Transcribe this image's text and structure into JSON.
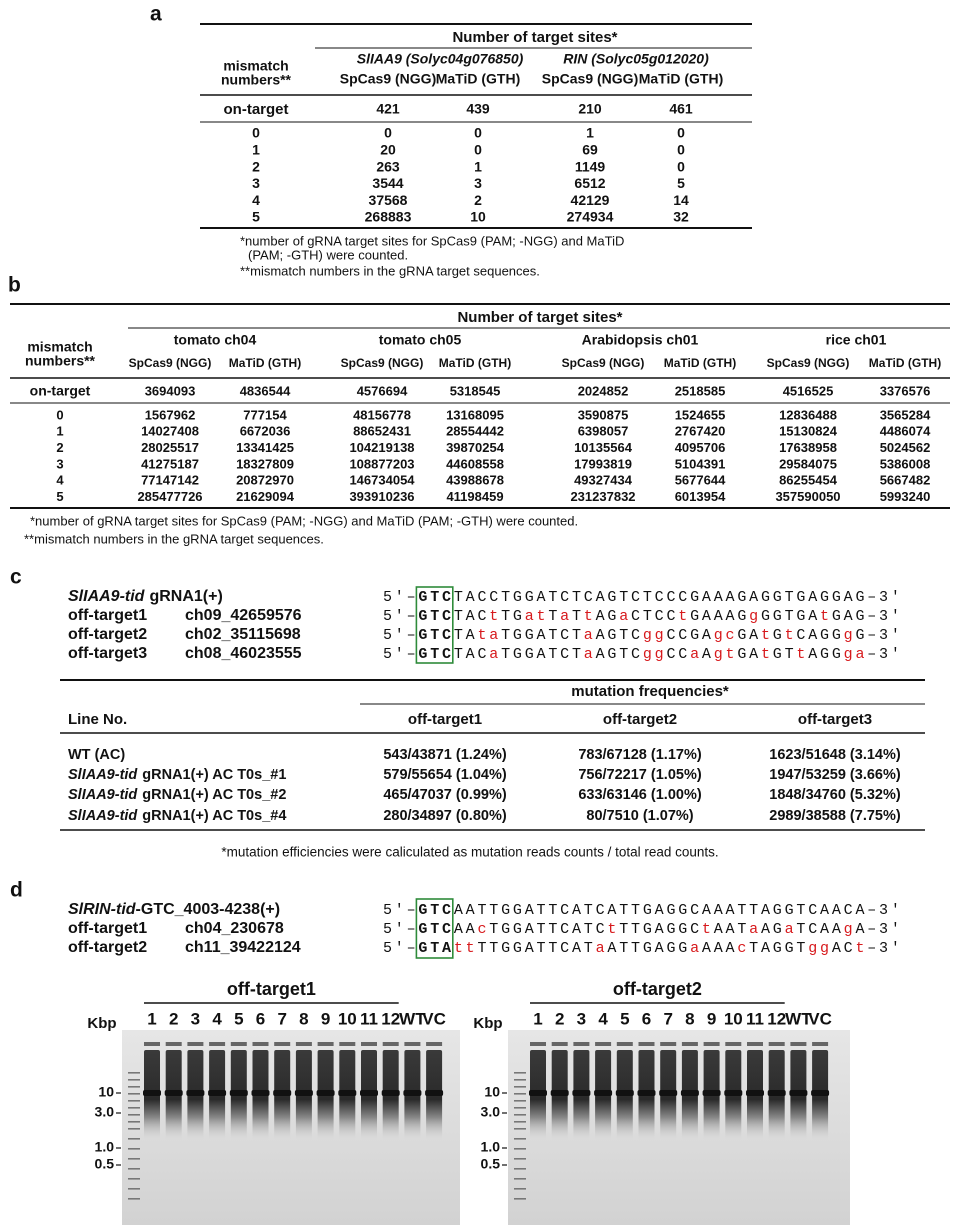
{
  "a": {
    "label": "a",
    "header": "Number of target sites*",
    "row_header": [
      "mismatch",
      "numbers**"
    ],
    "groups": [
      "SlIAA9 (Solyc04g076850)",
      "RIN (Solyc05g012020)"
    ],
    "columns": [
      "SpCas9 (NGG)",
      "MaTiD (GTH)",
      "SpCas9 (NGG)",
      "MaTiD (GTH)"
    ],
    "on_target": {
      "label": "on-target",
      "values": [
        421,
        439,
        210,
        461
      ]
    },
    "rows": [
      {
        "mismatch": 0,
        "values": [
          0,
          0,
          1,
          0
        ]
      },
      {
        "mismatch": 1,
        "values": [
          20,
          0,
          69,
          0
        ]
      },
      {
        "mismatch": 2,
        "values": [
          263,
          1,
          1149,
          0
        ]
      },
      {
        "mismatch": 3,
        "values": [
          3544,
          3,
          6512,
          5
        ]
      },
      {
        "mismatch": 4,
        "values": [
          37568,
          2,
          42129,
          14
        ]
      },
      {
        "mismatch": 5,
        "values": [
          268883,
          10,
          274934,
          32
        ]
      }
    ],
    "footnotes": [
      "*number of gRNA target sites for SpCas9 (PAM; -NGG) and MaTiD",
      "(PAM; -GTH) were counted.",
      "**mismatch numbers in the gRNA target sequences."
    ]
  },
  "b": {
    "label": "b",
    "header": "Number of target sites*",
    "row_header": [
      "mismatch",
      "numbers**"
    ],
    "groups": [
      "tomato ch04",
      "tomato ch05",
      "Arabidopsis ch01",
      "rice ch01"
    ],
    "columns": [
      "SpCas9 (NGG)",
      "MaTiD (GTH)",
      "SpCas9 (NGG)",
      "MaTiD (GTH)",
      "SpCas9 (NGG)",
      "MaTiD (GTH)",
      "SpCas9 (NGG)",
      "MaTiD (GTH)"
    ],
    "on_target": {
      "label": "on-target",
      "values": [
        3694093,
        4836544,
        4576694,
        5318545,
        2024852,
        2518585,
        4516525,
        3376576
      ]
    },
    "rows": [
      {
        "mismatch": 0,
        "values": [
          1567962,
          777154,
          48156778,
          13168095,
          3590875,
          1524655,
          12836488,
          3565284
        ]
      },
      {
        "mismatch": 1,
        "values": [
          14027408,
          6672036,
          88652431,
          28554442,
          6398057,
          2767420,
          15130824,
          4486074
        ]
      },
      {
        "mismatch": 2,
        "values": [
          28025517,
          13341425,
          104219138,
          39870254,
          10135564,
          4095706,
          17638958,
          5024562
        ]
      },
      {
        "mismatch": 3,
        "values": [
          41275187,
          18327809,
          108877203,
          44608558,
          17993819,
          5104391,
          29584075,
          5386008
        ]
      },
      {
        "mismatch": 4,
        "values": [
          77147142,
          20872970,
          146734054,
          43988678,
          49327434,
          5677644,
          86255454,
          5667482
        ]
      },
      {
        "mismatch": 5,
        "values": [
          285477726,
          21629094,
          393910236,
          41198459,
          231237832,
          6013954,
          357590050,
          5993240
        ]
      }
    ],
    "footnotes": [
      "*number of gRNA target sites for SpCas9 (PAM; -NGG) and MaTiD (PAM; -GTH) were counted.",
      "**mismatch numbers in the gRNA target sequences."
    ]
  },
  "c": {
    "label": "c",
    "end5": "5′–",
    "end3": "–3′",
    "guide": {
      "gene": "SlIAA9-tid",
      "name": "gRNA1(+)",
      "pam": "GTC",
      "seq": "TACCTGGATCTCAGTCTCCCGAAAGAGGTGAGGAG"
    },
    "off_targets": [
      {
        "name": "off-target1",
        "locus": "ch09_42659576",
        "pam": "GTC",
        "seq": "TACtTGatTaTtAGaCTCCtGAAAGgGGTGAtGAG"
      },
      {
        "name": "off-target2",
        "locus": "ch02_35115698",
        "pam": "GTC",
        "seq": "TAtaTGGATCTaAGTCggCCGAgcGAtGtCAGGgG"
      },
      {
        "name": "off-target3",
        "locus": "ch08_46023555",
        "pam": "GTC",
        "seq": "TACaTGGATCTaAGTCggCCaAgtGAtGTtAGGga"
      }
    ],
    "frequencies": {
      "header": "mutation frequencies*",
      "columns": [
        "Line No.",
        "off-target1",
        "off-target2",
        "off-target3"
      ],
      "rows": [
        {
          "line": {
            "text": "WT (AC)"
          },
          "values": [
            "543/43871 (1.24%)",
            "783/67128 (1.17%)",
            "1623/51648 (3.14%)"
          ]
        },
        {
          "line": {
            "gene": "SlIAA9-tid",
            "text": "gRNA1(+) AC T0s_#1"
          },
          "values": [
            "579/55654 (1.04%)",
            "756/72217 (1.05%)",
            "1947/53259 (3.66%)"
          ]
        },
        {
          "line": {
            "gene": "SlIAA9-tid",
            "text": "gRNA1(+) AC T0s_#2"
          },
          "values": [
            "465/47037 (0.99%)",
            "633/63146 (1.00%)",
            "1848/34760 (5.32%)"
          ]
        },
        {
          "line": {
            "gene": "SlIAA9-tid",
            "text": "gRNA1(+) AC T0s_#4"
          },
          "values": [
            "280/34897 (0.80%)",
            "80/7510 (1.07%)",
            "2989/38588 (7.75%)"
          ]
        }
      ],
      "footnote": "*mutation efficiencies were caliculated as mutation reads counts / total read counts."
    }
  },
  "d": {
    "label": "d",
    "end5": "5′–",
    "end3": "–3′",
    "guide": {
      "gene": "SlRIN-tid",
      "name": "-GTC_4003-4238(+)",
      "pam": "GTC",
      "seq": "AATTGGATTCATCATTGAGGCAAATTAGGTCAACA"
    },
    "off_targets": [
      {
        "name": "off-target1",
        "locus": "ch04_230678",
        "pam": "GTC",
        "seq": "AAcTGGATTCATCtTTGAGGCtAATaAGaTCAAgA"
      },
      {
        "name": "off-target2",
        "locus": "ch11_39422124",
        "pam": "GTA",
        "seq": "ttTTGGATTCATaATTGAGGaAAAcTAGGTggACt"
      }
    ],
    "gels": [
      {
        "title": "off-target1",
        "unit": "Kbp",
        "lanes": [
          "1",
          "2",
          "3",
          "4",
          "5",
          "6",
          "7",
          "8",
          "9",
          "10",
          "11",
          "12",
          "WT",
          "VC"
        ],
        "markers": [
          "10",
          "3.0",
          "1.0",
          "0.5"
        ]
      },
      {
        "title": "off-target2",
        "unit": "Kbp",
        "lanes": [
          "1",
          "2",
          "3",
          "4",
          "5",
          "6",
          "7",
          "8",
          "9",
          "10",
          "11",
          "12",
          "WT",
          "VC"
        ],
        "markers": [
          "10",
          "3.0",
          "1.0",
          "0.5"
        ]
      }
    ]
  }
}
